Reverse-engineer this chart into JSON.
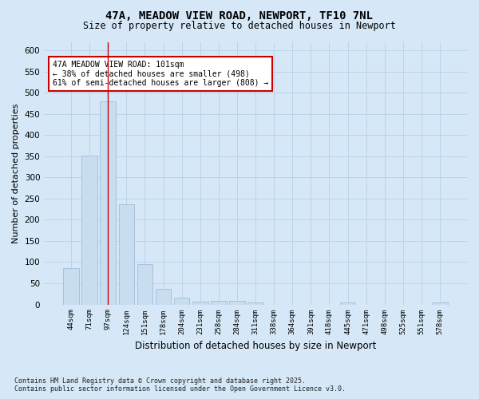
{
  "title_line1": "47A, MEADOW VIEW ROAD, NEWPORT, TF10 7NL",
  "title_line2": "Size of property relative to detached houses in Newport",
  "xlabel": "Distribution of detached houses by size in Newport",
  "ylabel": "Number of detached properties",
  "categories": [
    "44sqm",
    "71sqm",
    "97sqm",
    "124sqm",
    "151sqm",
    "178sqm",
    "204sqm",
    "231sqm",
    "258sqm",
    "284sqm",
    "311sqm",
    "338sqm",
    "364sqm",
    "391sqm",
    "418sqm",
    "445sqm",
    "471sqm",
    "498sqm",
    "525sqm",
    "551sqm",
    "578sqm"
  ],
  "values": [
    85,
    352,
    480,
    237,
    96,
    37,
    17,
    7,
    8,
    8,
    4,
    0,
    0,
    0,
    0,
    5,
    0,
    0,
    0,
    0,
    5
  ],
  "bar_color": "#c9ddf0",
  "bar_edge_color": "#a0bdd8",
  "highlight_bar_index": 2,
  "highlight_line_color": "#cc0000",
  "annotation_text": "47A MEADOW VIEW ROAD: 101sqm\n← 38% of detached houses are smaller (498)\n61% of semi-detached houses are larger (808) →",
  "annotation_box_facecolor": "#ffffff",
  "annotation_box_edgecolor": "#cc0000",
  "ylim": [
    0,
    620
  ],
  "yticks": [
    0,
    50,
    100,
    150,
    200,
    250,
    300,
    350,
    400,
    450,
    500,
    550,
    600
  ],
  "grid_color": "#b8cfe8",
  "background_color": "#d6e8f7",
  "footer_line1": "Contains HM Land Registry data © Crown copyright and database right 2025.",
  "footer_line2": "Contains public sector information licensed under the Open Government Licence v3.0."
}
